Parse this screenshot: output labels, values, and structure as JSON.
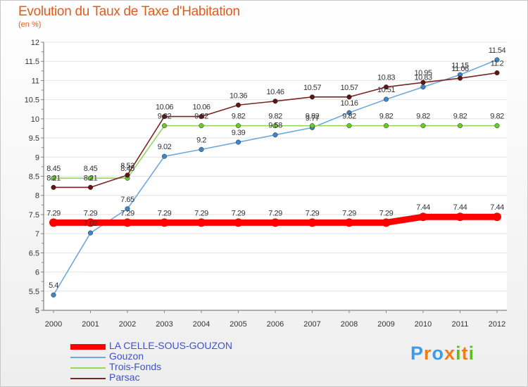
{
  "chart_data": {
    "type": "line",
    "title": "Evolution du Taux de Taxe d'Habitation",
    "subtitle": "(en %)",
    "categories": [
      "2000",
      "2001",
      "2002",
      "2003",
      "2004",
      "2005",
      "2006",
      "2007",
      "2008",
      "2009",
      "2010",
      "2011",
      "2012"
    ],
    "ylim": [
      5,
      12
    ],
    "yticks": [
      "5",
      "5.5",
      "6",
      "6.5",
      "7",
      "7.5",
      "8",
      "8.5",
      "9",
      "9.5",
      "10",
      "10.5",
      "11",
      "11.5",
      "12"
    ],
    "grid": "horizontal",
    "legend_position": "bottom-left",
    "series": [
      {
        "name": "LA CELLE-SOUS-GOUZON",
        "color": "#ff0000",
        "marker_color": "#ff0000",
        "values": [
          7.29,
          7.29,
          7.29,
          7.29,
          7.29,
          7.29,
          7.29,
          7.29,
          7.29,
          7.29,
          7.44,
          7.44,
          7.44
        ],
        "labels": [
          "7.29",
          "7.29",
          "7.29",
          "7.29",
          "7.29",
          "7.29",
          "7.29",
          "7.29",
          "7.29",
          "7.29",
          "7.44",
          "7.44",
          "7.44"
        ]
      },
      {
        "name": "Gouzon",
        "color": "#6fa8dc",
        "marker_color": "#3d85c6",
        "values": [
          5.4,
          7.02,
          7.65,
          9.02,
          9.2,
          9.39,
          9.58,
          9.77,
          10.16,
          10.51,
          10.83,
          11.15,
          11.54
        ],
        "labels": [
          "5.4",
          "7.02",
          "7.65",
          "9.02",
          "9.2",
          "9.39",
          "9.58",
          "9.77",
          "10.16",
          "10.51",
          "10.83",
          "11.15",
          "11.54"
        ]
      },
      {
        "name": "Trois-Fonds",
        "color": "#93d75b",
        "marker_color": "#6bc730",
        "values": [
          8.45,
          8.45,
          8.45,
          9.82,
          9.82,
          9.82,
          9.82,
          9.82,
          9.82,
          9.82,
          9.82,
          9.82,
          9.82
        ],
        "labels": [
          "8.45",
          "8.45",
          "8.45",
          "9.82",
          "9.82",
          "9.82",
          "9.82",
          "9.82",
          "9.82",
          "9.82",
          "9.82",
          "9.82",
          "9.82"
        ]
      },
      {
        "name": "Parsac",
        "color": "#7a2424",
        "marker_color": "#5e1515",
        "values": [
          8.21,
          8.21,
          8.53,
          10.06,
          10.06,
          10.36,
          10.46,
          10.57,
          10.57,
          10.83,
          10.95,
          11.06,
          11.2
        ],
        "labels": [
          "8.21",
          "8.21",
          "8.53",
          "10.06",
          "10.06",
          "10.36",
          "10.46",
          "10.57",
          "10.57",
          "10.83",
          "10.95",
          "11.06",
          "11.2"
        ]
      }
    ]
  },
  "brand": {
    "text": "Proxiti",
    "colors": [
      "#3d9be9",
      "#ef7d1a",
      "#3d9be9",
      "#ef7d1a",
      "#5fbf1d",
      "#ef7d1a",
      "#5fbf1d"
    ]
  }
}
